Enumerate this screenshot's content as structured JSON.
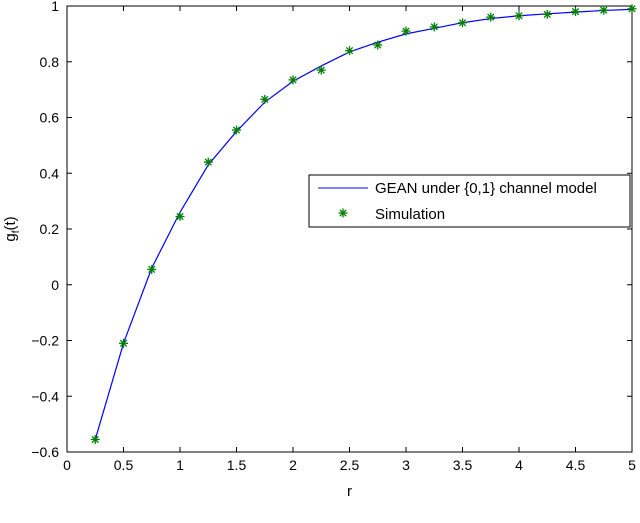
{
  "chart_data": {
    "type": "line",
    "title": "",
    "xlabel": "r",
    "ylabel": "g_f(t)",
    "xlim": [
      0,
      5
    ],
    "ylim": [
      -0.6,
      1
    ],
    "xticks": [
      0,
      0.5,
      1,
      1.5,
      2,
      2.5,
      3,
      3.5,
      4,
      4.5,
      5
    ],
    "yticks": [
      -0.6,
      -0.4,
      -0.2,
      0,
      0.2,
      0.4,
      0.6,
      0.8,
      1
    ],
    "xtick_labels": [
      "0",
      "0.5",
      "1",
      "1.5",
      "2",
      "2.5",
      "3",
      "3.5",
      "4",
      "4.5",
      "5"
    ],
    "ytick_labels": [
      "−0.6",
      "−0.4",
      "−0.2",
      "0",
      "0.2",
      "0.4",
      "0.6",
      "0.8",
      "1"
    ],
    "grid": false,
    "legend_position": "center-right",
    "series": [
      {
        "name": "GEAN under {0,1} channel model",
        "style": "line",
        "color": "#0000ff",
        "x": [
          0.25,
          0.5,
          0.75,
          1.0,
          1.25,
          1.5,
          1.75,
          2.0,
          2.25,
          2.5,
          2.75,
          3.0,
          3.25,
          3.5,
          3.75,
          4.0,
          4.25,
          4.5,
          4.75,
          5.0
        ],
        "y": [
          -0.555,
          -0.21,
          0.06,
          0.26,
          0.43,
          0.55,
          0.655,
          0.73,
          0.785,
          0.835,
          0.87,
          0.9,
          0.92,
          0.94,
          0.955,
          0.965,
          0.972,
          0.978,
          0.984,
          0.988
        ]
      },
      {
        "name": "Simulation",
        "style": "markers",
        "marker": "*",
        "color": "#007f00",
        "x": [
          0.25,
          0.5,
          0.75,
          1.0,
          1.25,
          1.5,
          1.75,
          2.0,
          2.25,
          2.5,
          2.75,
          3.0,
          3.25,
          3.5,
          3.75,
          4.0,
          4.25,
          4.5,
          4.75,
          5.0
        ],
        "y": [
          -0.555,
          -0.21,
          0.055,
          0.245,
          0.44,
          0.555,
          0.665,
          0.735,
          0.77,
          0.84,
          0.86,
          0.91,
          0.925,
          0.94,
          0.96,
          0.965,
          0.97,
          0.98,
          0.985,
          0.99
        ]
      }
    ]
  }
}
